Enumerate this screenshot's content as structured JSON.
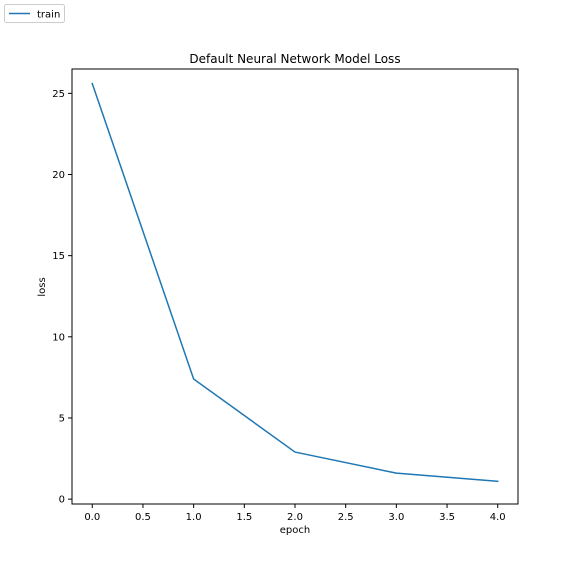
{
  "chart_data": {
    "type": "line",
    "title": "Default Neural Network Model Loss",
    "xlabel": "epoch",
    "ylabel": "loss",
    "xlim": [
      -0.2,
      4.2
    ],
    "ylim": [
      -0.3,
      26.5
    ],
    "xticks": [
      0.0,
      0.5,
      1.0,
      1.5,
      2.0,
      2.5,
      3.0,
      3.5,
      4.0
    ],
    "xtick_labels": [
      "0.0",
      "0.5",
      "1.0",
      "1.5",
      "2.0",
      "2.5",
      "3.0",
      "3.5",
      "4.0"
    ],
    "yticks": [
      0,
      5,
      10,
      15,
      20,
      25
    ],
    "ytick_labels": [
      "0",
      "5",
      "10",
      "15",
      "20",
      "25"
    ],
    "grid": false,
    "legend_position": "top-left",
    "series": [
      {
        "name": "train",
        "color": "#1f77b4",
        "x": [
          0,
          1,
          2,
          3,
          4
        ],
        "y": [
          25.6,
          7.4,
          2.9,
          1.6,
          1.1
        ]
      }
    ]
  }
}
